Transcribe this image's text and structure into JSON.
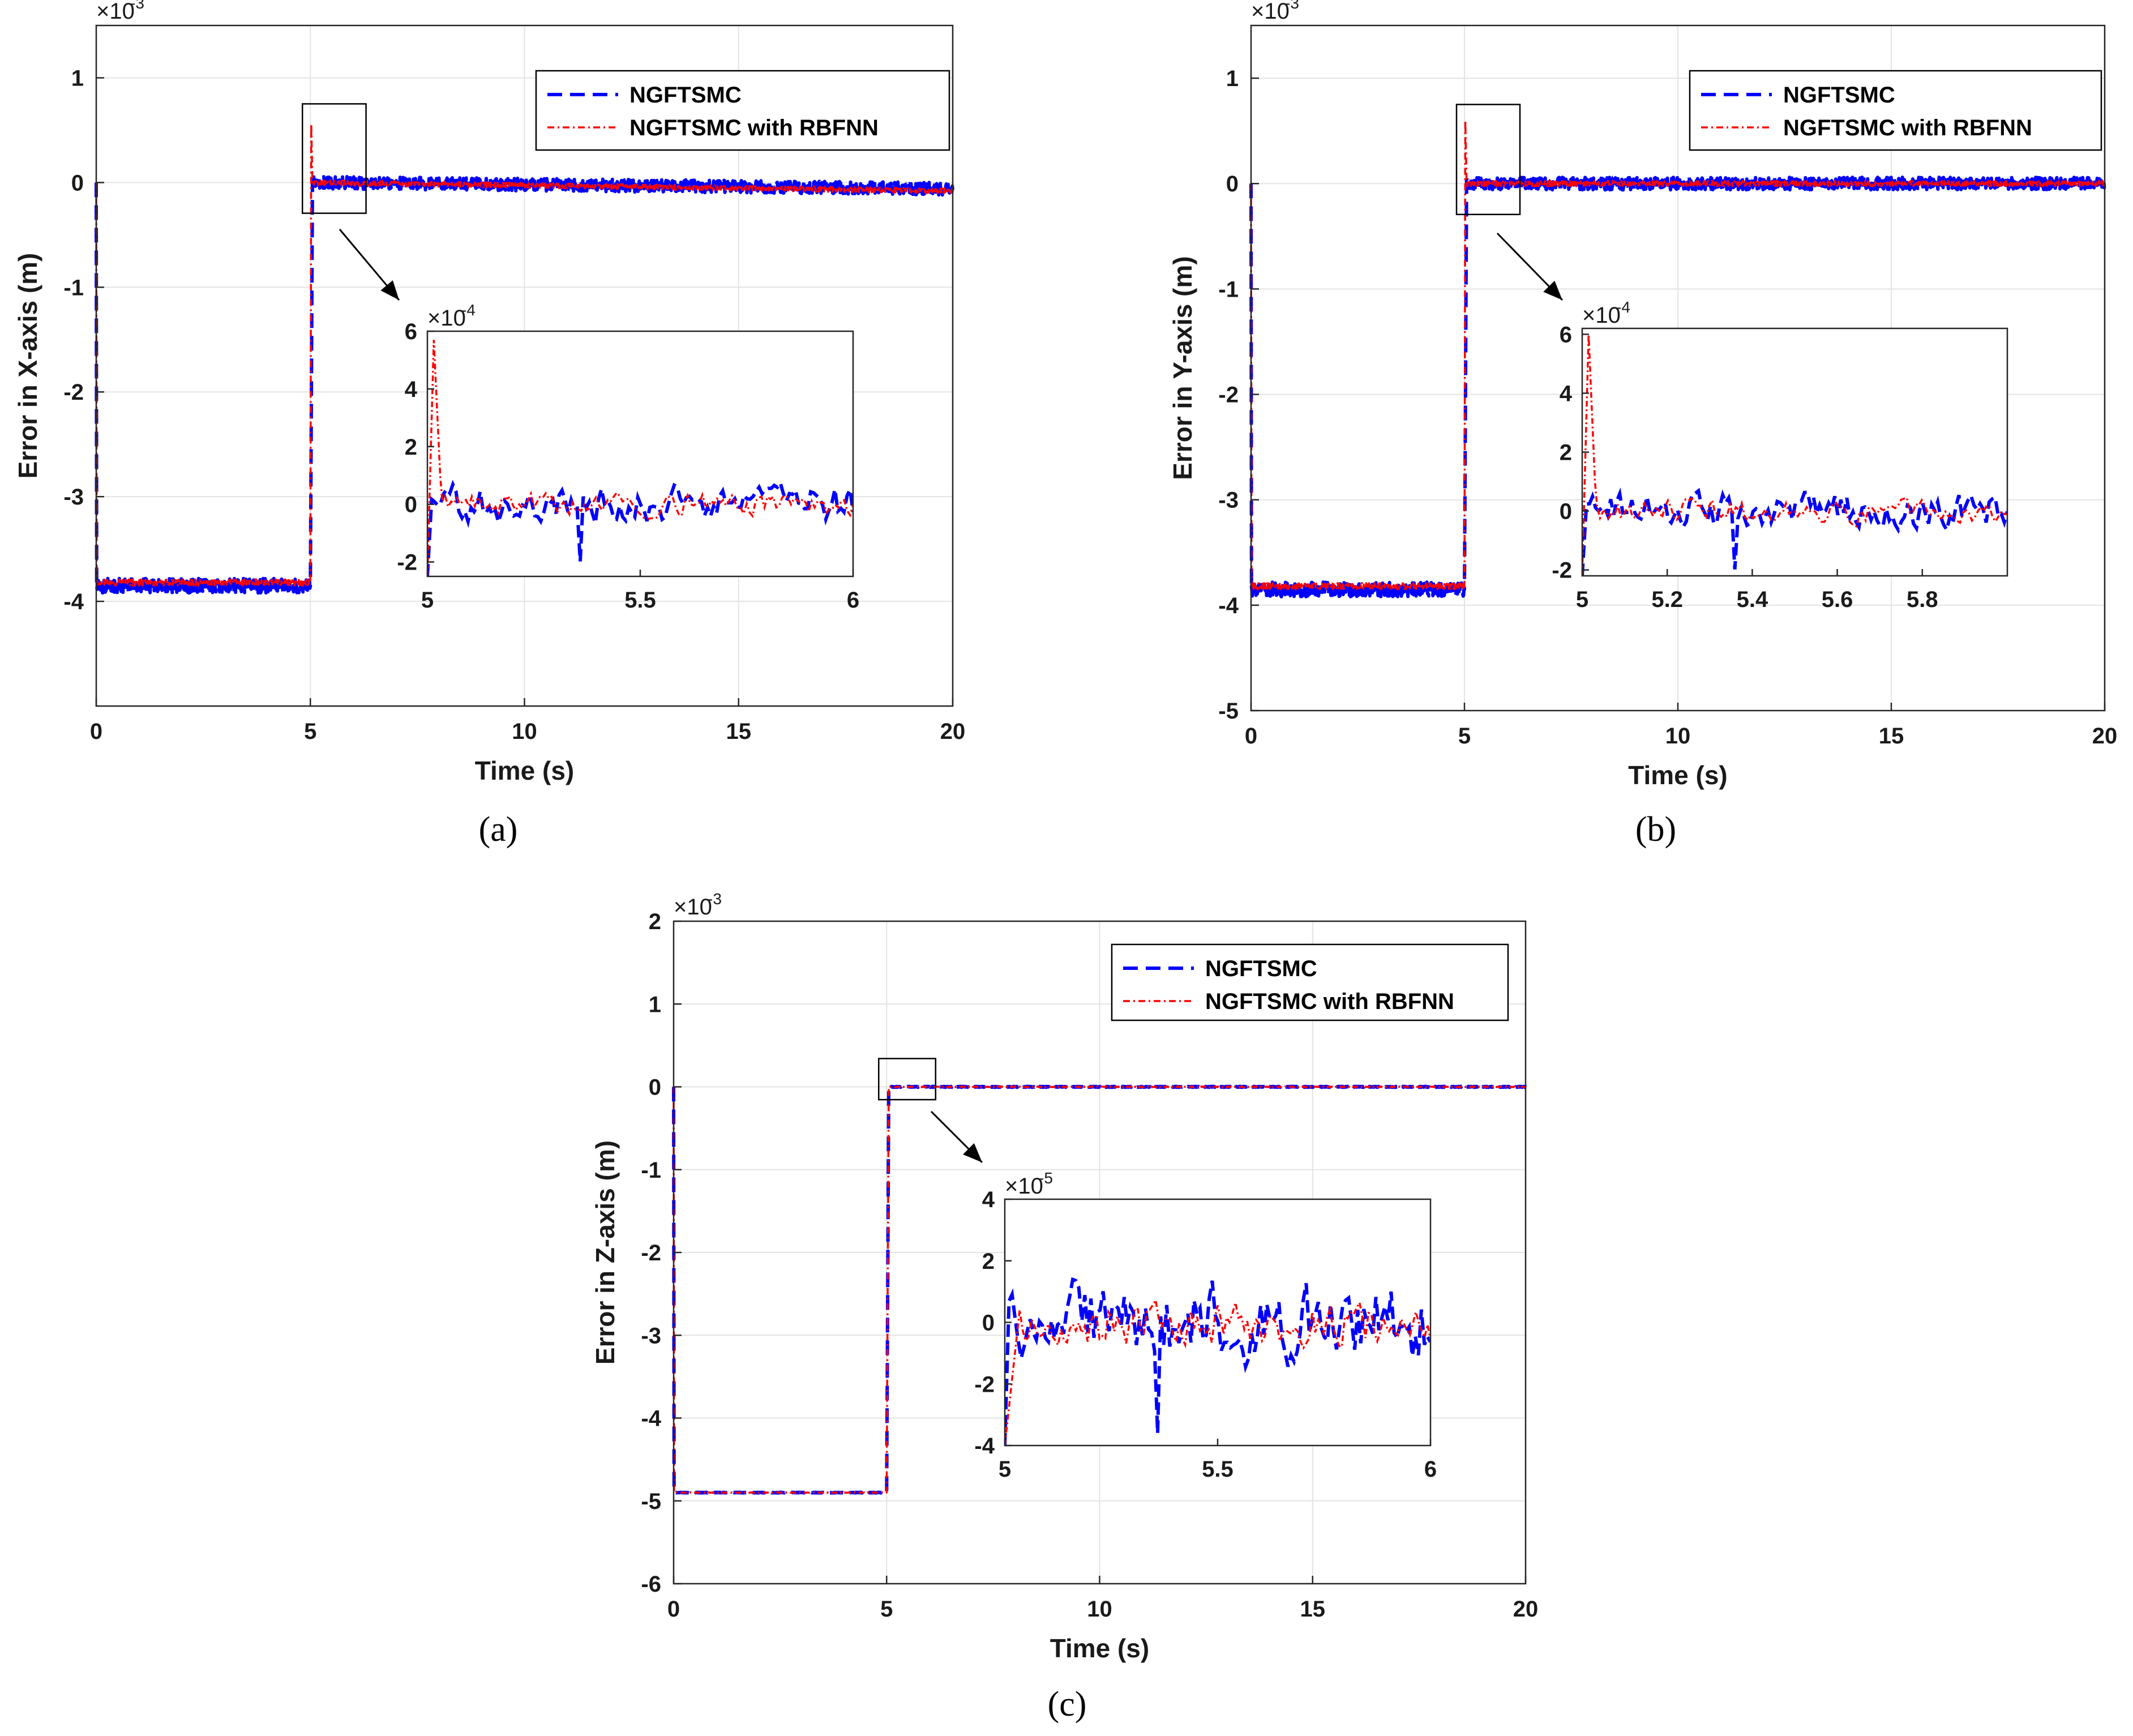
{
  "figure": {
    "captions": [
      "(a)",
      "(b)",
      "(c)"
    ]
  },
  "colors": {
    "ngftsmc": "#0000ff",
    "rbfnn": "#ff0000",
    "grid": "#e3e3e3",
    "axis": "#262626"
  },
  "chart_data": [
    {
      "id": "a",
      "type": "line",
      "caption": "(a)",
      "xlabel": "Time (s)",
      "ylabel": "Error in X-axis (m)",
      "xlim": [
        0,
        20
      ],
      "ylim": [
        -5,
        1.5
      ],
      "xticks": [
        0,
        5,
        10,
        15,
        20
      ],
      "yticks": [
        -4,
        -3,
        -2,
        -1,
        0,
        1
      ],
      "multiplier": "×10",
      "exponent": "-3",
      "grid": true,
      "legend_position": "top-right",
      "series": [
        {
          "name": "NGFTSMC",
          "style": "dashed",
          "color": "#0000ff",
          "pre_step_level": -3.85,
          "pre_noise": 0.07,
          "post_level": 0.0,
          "post_drift": -0.06,
          "post_noise": 0.06
        },
        {
          "name": "NGFTSMC with RBFNN",
          "style": "dashdot",
          "color": "#ff0000",
          "pre_step_level": -3.82,
          "pre_noise": 0.03,
          "post_level": 0.0,
          "post_drift": -0.08,
          "post_noise": 0.025,
          "peak": 0.56
        }
      ],
      "zoom_box": {
        "xlim": [
          5,
          6.3
        ],
        "ylim": [
          -0.25,
          0.6
        ]
      },
      "inset": {
        "xlim": [
          5,
          6
        ],
        "ylim": [
          -2.5,
          6
        ],
        "xticks": [
          "5",
          "5.5",
          "6"
        ],
        "yticks": [
          "-2",
          "0",
          "2",
          "4",
          "6"
        ],
        "xtick_values": [
          5,
          5.5,
          6
        ],
        "ytick_values": [
          -2,
          0,
          2,
          4,
          6
        ],
        "multiplier": "×10",
        "exponent": "-4",
        "ngftsmc": {
          "amplitude": 0.6,
          "spike": -2.2
        },
        "rbfnn": {
          "amplitude": 0.35,
          "peak": 5.7
        }
      }
    },
    {
      "id": "b",
      "type": "line",
      "caption": "(b)",
      "xlabel": "Time (s)",
      "ylabel": "Error in Y-axis (m)",
      "xlim": [
        0,
        20
      ],
      "ylim": [
        -5,
        1.5
      ],
      "xticks": [
        0,
        5,
        10,
        15,
        20
      ],
      "yticks": [
        -5,
        -4,
        -3,
        -2,
        -1,
        0,
        1
      ],
      "multiplier": "×10",
      "exponent": "-3",
      "grid": true,
      "legend_position": "top-right",
      "series": [
        {
          "name": "NGFTSMC",
          "style": "dashed",
          "color": "#0000ff",
          "pre_step_level": -3.85,
          "pre_noise": 0.07,
          "post_level": 0.0,
          "post_drift": 0.0,
          "post_noise": 0.06
        },
        {
          "name": "NGFTSMC with RBFNN",
          "style": "dashdot",
          "color": "#ff0000",
          "pre_step_level": -3.82,
          "pre_noise": 0.03,
          "post_level": 0.0,
          "post_drift": 0.0,
          "post_noise": 0.025,
          "peak": 0.6
        }
      ],
      "zoom_box": {
        "xlim": [
          5,
          6.3
        ],
        "ylim": [
          -0.25,
          0.6
        ]
      },
      "inset": {
        "xlim": [
          5,
          6
        ],
        "ylim": [
          -2.2,
          6.2
        ],
        "xticks": [
          "5",
          "5.2",
          "5.4",
          "5.6",
          "5.8"
        ],
        "yticks": [
          "-2",
          "0",
          "2",
          "4",
          "6"
        ],
        "xtick_values": [
          5,
          5.2,
          5.4,
          5.6,
          5.8
        ],
        "ytick_values": [
          -2,
          0,
          2,
          4,
          6
        ],
        "multiplier": "×10",
        "exponent": "-4",
        "ngftsmc": {
          "amplitude": 0.55,
          "spike": -2.2
        },
        "rbfnn": {
          "amplitude": 0.35,
          "peak": 6.0
        }
      }
    },
    {
      "id": "c",
      "type": "line",
      "caption": "(c)",
      "xlabel": "Time (s)",
      "ylabel": "Error in Z-axis (m)",
      "xlim": [
        0,
        20
      ],
      "ylim": [
        -6,
        2
      ],
      "xticks": [
        0,
        5,
        10,
        15,
        20
      ],
      "yticks": [
        -6,
        -5,
        -4,
        -3,
        -2,
        -1,
        0,
        1,
        2
      ],
      "multiplier": "×10",
      "exponent": "-3",
      "grid": true,
      "legend_position": "top-right",
      "series": [
        {
          "name": "NGFTSMC",
          "style": "dashed",
          "color": "#0000ff",
          "pre_step_level": -4.9,
          "pre_noise": 0.004,
          "post_level": 0.0,
          "post_drift": 0.0,
          "post_noise": 0.006
        },
        {
          "name": "NGFTSMC with RBFNN",
          "style": "dashdot",
          "color": "#ff0000",
          "pre_step_level": -4.9,
          "pre_noise": 0.003,
          "post_level": 0.0,
          "post_drift": 0.0,
          "post_noise": 0.004,
          "peak": 0.0
        }
      ],
      "zoom_box": {
        "xlim": [
          5,
          6.15
        ],
        "ylim": [
          -0.1,
          0.15
        ]
      },
      "inset": {
        "xlim": [
          5,
          6
        ],
        "ylim": [
          -4,
          4
        ],
        "xticks": [
          "5",
          "5.5",
          "6"
        ],
        "yticks": [
          "-4",
          "-2",
          "0",
          "2",
          "4"
        ],
        "xtick_values": [
          5,
          5.5,
          6
        ],
        "ytick_values": [
          -4,
          -2,
          0,
          2,
          4
        ],
        "multiplier": "×10",
        "exponent": "-5",
        "ngftsmc": {
          "amplitude": 1.2,
          "spike": -4.0
        },
        "rbfnn": {
          "amplitude": 0.7,
          "peak": 0.0
        }
      }
    }
  ]
}
